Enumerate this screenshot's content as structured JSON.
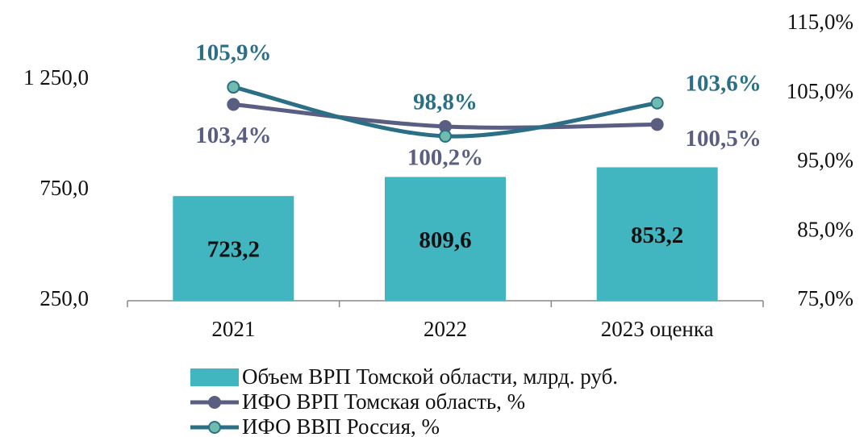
{
  "chart_data": {
    "type": "bar-line",
    "categories": [
      "2021",
      "2022",
      "2023 оценка"
    ],
    "series": [
      {
        "name": "Объем ВРП Томской области, млрд. руб.",
        "type": "bar",
        "color": "#41b6c0",
        "values": [
          723.2,
          809.6,
          853.2
        ],
        "value_labels": [
          "723,2",
          "809,6",
          "853,2"
        ]
      },
      {
        "name": "ИФО ВРП Томская область, %",
        "type": "line",
        "axis": "y2",
        "color": "#5a5f82",
        "marker_color": "#5a5f82",
        "values": [
          103.4,
          100.2,
          100.5
        ],
        "value_labels": [
          "103,4%",
          "100,2%",
          "100,5%"
        ]
      },
      {
        "name": "ИФО ВВП Россия, %",
        "type": "line",
        "axis": "y2",
        "color": "#2b6f86",
        "marker_color": "#6fbcae",
        "values": [
          105.9,
          98.8,
          103.6
        ],
        "value_labels": [
          "105,9%",
          "98,8%",
          "103,6%"
        ]
      }
    ],
    "ylim": [
      250,
      1500
    ],
    "yticks": [
      {
        "value": 250,
        "label": "250,0"
      },
      {
        "value": 750,
        "label": "750,0"
      },
      {
        "value": 1250,
        "label": "1 250,0"
      }
    ],
    "y2lim": [
      75,
      115
    ],
    "y2ticks": [
      {
        "value": 75,
        "label": "75,0%"
      },
      {
        "value": 85,
        "label": "85,0%"
      },
      {
        "value": 95,
        "label": "95,0%"
      },
      {
        "value": 105,
        "label": "105,0%"
      },
      {
        "value": 115,
        "label": "115,0%"
      }
    ],
    "grid": false,
    "legend": "bottom"
  }
}
